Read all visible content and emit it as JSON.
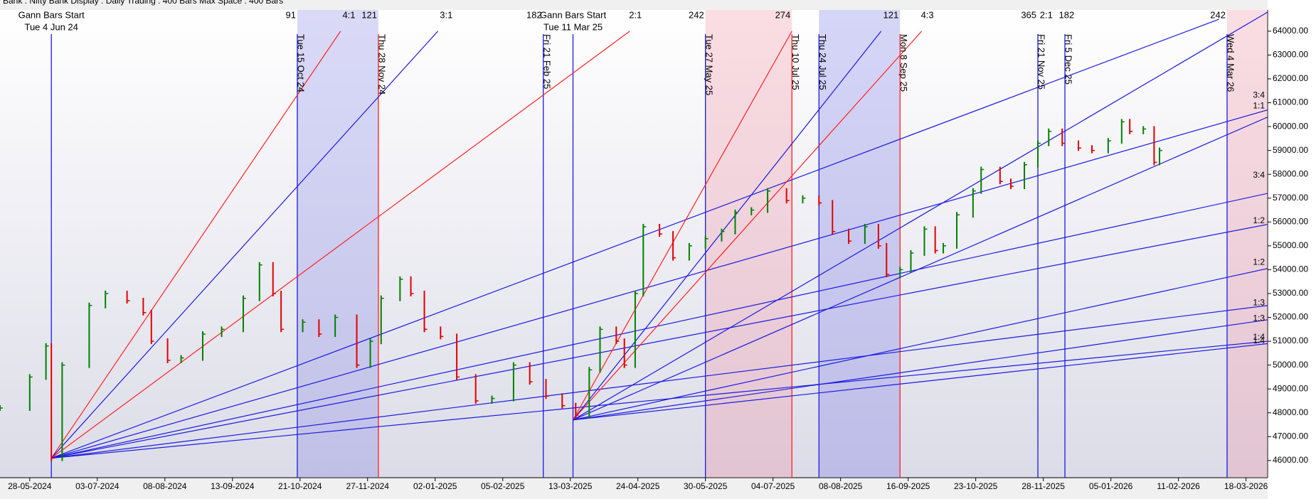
{
  "header_text": "Bank : Nifty Bank Display : Daily    Trading : 400 Bars    Max Space : 400 Bars",
  "chart_data": {
    "type": "gann",
    "xlim": [
      -11,
      458
    ],
    "ylim": [
      45280,
      64890
    ],
    "xticks": [
      {
        "value": 0,
        "label": "28-05-2024"
      },
      {
        "value": 25,
        "label": "03-07-2024"
      },
      {
        "value": 50,
        "label": "08-08-2024"
      },
      {
        "value": 75,
        "label": "13-09-2024"
      },
      {
        "value": 100,
        "label": "21-10-2024"
      },
      {
        "value": 125,
        "label": "27-11-2024"
      },
      {
        "value": 150,
        "label": "02-01-2025"
      },
      {
        "value": 175,
        "label": "05-02-2025"
      },
      {
        "value": 200,
        "label": "13-03-2025"
      },
      {
        "value": 225,
        "label": "24-04-2025"
      },
      {
        "value": 250,
        "label": "30-05-2025"
      },
      {
        "value": 275,
        "label": "04-07-2025"
      },
      {
        "value": 300,
        "label": "08-08-2025"
      },
      {
        "value": 325,
        "label": "16-09-2025"
      },
      {
        "value": 350,
        "label": "23-10-2025"
      },
      {
        "value": 375,
        "label": "28-11-2025"
      },
      {
        "value": 400,
        "label": "05-01-2026"
      },
      {
        "value": 425,
        "label": "11-02-2026"
      },
      {
        "value": 450,
        "label": "18-03-2026"
      }
    ],
    "yticks": [
      {
        "value": 46000,
        "label": "46000.00"
      },
      {
        "value": 47000,
        "label": "47000.00"
      },
      {
        "value": 48000,
        "label": "48000.00"
      },
      {
        "value": 49000,
        "label": "49000.00"
      },
      {
        "value": 50000,
        "label": "50000.00"
      },
      {
        "value": 51000,
        "label": "51000.00"
      },
      {
        "value": 52000,
        "label": "52000.00"
      },
      {
        "value": 53000,
        "label": "53000.00"
      },
      {
        "value": 54000,
        "label": "54000.00"
      },
      {
        "value": 55000,
        "label": "55000.00"
      },
      {
        "value": 56000,
        "label": "56000.00"
      },
      {
        "value": 57000,
        "label": "57000.00"
      },
      {
        "value": 58000,
        "label": "58000.00"
      },
      {
        "value": 59000,
        "label": "59000.00"
      },
      {
        "value": 60000,
        "label": "60000.00"
      },
      {
        "value": 61000,
        "label": "61000.00"
      },
      {
        "value": 62000,
        "label": "62000.00"
      },
      {
        "value": 63000,
        "label": "63000.00"
      },
      {
        "value": 64000,
        "label": "64000.00"
      }
    ],
    "price": {
      "up_color": "#008000",
      "down_color": "#e00000",
      "x": [
        -11,
        0,
        6,
        8,
        12,
        22,
        28,
        36,
        42,
        45,
        51,
        56,
        64,
        71,
        79,
        85,
        90,
        93,
        101,
        107,
        113,
        121,
        126,
        130,
        137,
        141,
        146,
        152,
        158,
        165,
        171,
        179,
        185,
        191,
        197,
        202,
        207,
        211,
        217,
        220,
        224,
        227,
        233,
        238,
        244,
        250,
        256,
        261,
        267,
        273,
        280,
        286,
        292,
        297,
        303,
        309,
        314,
        317,
        322,
        326,
        331,
        335,
        338,
        343,
        349,
        352,
        359,
        363,
        368,
        373,
        377,
        382,
        388,
        393,
        399,
        404,
        407,
        412,
        416,
        418
      ],
      "values": [
        48200,
        49500,
        50800,
        46100,
        50000,
        52500,
        53000,
        52700,
        52200,
        51000,
        50200,
        50300,
        51300,
        51500,
        52800,
        54200,
        53000,
        51500,
        51800,
        51300,
        52000,
        50000,
        51000,
        52800,
        53600,
        53000,
        51500,
        51200,
        49500,
        48500,
        48600,
        50000,
        49300,
        48700,
        48300,
        47900,
        49800,
        51500,
        51000,
        50000,
        53000,
        55800,
        55500,
        54500,
        55000,
        55300,
        55600,
        56400,
        56500,
        57300,
        56900,
        57000,
        56800,
        55600,
        55200,
        55800,
        55000,
        53800,
        54000,
        54700,
        55700,
        54800,
        55000,
        56300,
        57300,
        58200,
        57700,
        57500,
        58400,
        59300,
        59800,
        59300,
        59100,
        59000,
        59400,
        60200,
        59800,
        59900,
        58500,
        59000
      ]
    },
    "bands": [
      {
        "from": 99,
        "to": 129,
        "color": "#7a7ae6"
      },
      {
        "from": 250,
        "to": 282,
        "color": "#f08a9a"
      },
      {
        "from": 292,
        "to": 322,
        "color": "#6a6ae6"
      },
      {
        "from": 443,
        "to": 458,
        "color": "#f08a9a"
      }
    ],
    "vlines": [
      {
        "x": 8,
        "color": "#1a1ae0"
      },
      {
        "x": 99,
        "color": "#1a1ae0",
        "label": "Tue 15 Oct 24"
      },
      {
        "x": 129,
        "color": "#ff2020",
        "label": "Thu 28 Nov 24"
      },
      {
        "x": 190,
        "color": "#1a1ae0",
        "label": "Fri 21 Feb 25"
      },
      {
        "x": 201,
        "color": "#1a1ae0"
      },
      {
        "x": 250,
        "color": "#1a1ae0",
        "label": "Tue 27 May 25"
      },
      {
        "x": 282,
        "color": "#ff2020",
        "label": "Thu 10 Jul 25"
      },
      {
        "x": 292,
        "color": "#1a1ae0",
        "label": "Thu 24 Jul 25"
      },
      {
        "x": 322,
        "color": "#ff2020",
        "label": "Mon 8 Sep 25"
      },
      {
        "x": 373,
        "color": "#1a1ae0",
        "label": "Fri 21 Nov 25"
      },
      {
        "x": 383,
        "color": "#1a1ae0",
        "label": "Fri 5 Dec 25"
      },
      {
        "x": 443,
        "color": "#1a1ae0",
        "label": "Wed 4 Mar 26"
      }
    ],
    "starts": [
      {
        "x": 8,
        "title": "Gann Bars Start",
        "date": "Tue 4 Jun 24"
      },
      {
        "x": 201,
        "title": "Gann Bars Start",
        "date": "Tue 11 Mar 25"
      }
    ],
    "top_labels": [
      {
        "text": "91",
        "x": 99
      },
      {
        "text": "4:1",
        "x": 121
      },
      {
        "text": "121",
        "x": 129
      },
      {
        "text": "3:1",
        "x": 157
      },
      {
        "text": "182",
        "x": 190
      },
      {
        "text": "2:1",
        "x": 227
      },
      {
        "text": "242",
        "x": 250
      },
      {
        "text": "274",
        "x": 282
      },
      {
        "text": "121",
        "x": 322
      },
      {
        "text": "4:3",
        "x": 335
      },
      {
        "text": "365",
        "x": 373
      },
      {
        "text": "2:1",
        "x": 379
      },
      {
        "text": "182",
        "x": 387
      },
      {
        "text": "242",
        "x": 443
      }
    ],
    "fans": [
      {
        "color": "#ff2020",
        "from": [
          8,
          46100
        ],
        "to": [
          115,
          64000
        ]
      },
      {
        "color": "#1a1ae0",
        "from": [
          8,
          46100
        ],
        "to": [
          151,
          64000
        ]
      },
      {
        "color": "#ff2020",
        "from": [
          8,
          46100
        ],
        "to": [
          222,
          64000
        ]
      },
      {
        "color": "#1a1ae0",
        "from": [
          8,
          46100
        ],
        "to": [
          440,
          64500
        ]
      },
      {
        "color": "#1a1ae0",
        "from": [
          8,
          46100
        ],
        "to": [
          458,
          60700
        ]
      },
      {
        "color": "#1a1ae0",
        "from": [
          8,
          46100
        ],
        "to": [
          458,
          57200
        ]
      },
      {
        "color": "#1a1ae0",
        "from": [
          8,
          46100
        ],
        "to": [
          458,
          55900
        ]
      },
      {
        "color": "#1a1ae0",
        "from": [
          8,
          46100
        ],
        "to": [
          458,
          52500
        ]
      },
      {
        "color": "#1a1ae0",
        "from": [
          8,
          46100
        ],
        "to": [
          458,
          51000
        ]
      },
      {
        "color": "#ff2020",
        "from": [
          201,
          47700
        ],
        "to": [
          282,
          64000
        ]
      },
      {
        "color": "#1a1ae0",
        "from": [
          201,
          47700
        ],
        "to": [
          315,
          64000
        ]
      },
      {
        "color": "#ff2020",
        "from": [
          201,
          47700
        ],
        "to": [
          330,
          64000
        ]
      },
      {
        "color": "#1a1ae0",
        "from": [
          201,
          47700
        ],
        "to": [
          458,
          64800
        ]
      },
      {
        "color": "#1a1ae0",
        "from": [
          201,
          47700
        ],
        "to": [
          458,
          60400
        ]
      },
      {
        "color": "#1a1ae0",
        "from": [
          201,
          47700
        ],
        "to": [
          458,
          54050
        ]
      },
      {
        "color": "#1a1ae0",
        "from": [
          201,
          47700
        ],
        "to": [
          458,
          51900
        ]
      },
      {
        "color": "#1a1ae0",
        "from": [
          201,
          47700
        ],
        "to": [
          458,
          50900
        ]
      }
    ],
    "ratio_labels": [
      {
        "text": "3:4",
        "price": 61300
      },
      {
        "text": "1:1",
        "price": 60850
      },
      {
        "text": "3:4",
        "price": 57950
      },
      {
        "text": "1:2",
        "price": 56050
      },
      {
        "text": "1:2",
        "price": 54300
      },
      {
        "text": "1:3",
        "price": 52600
      },
      {
        "text": "1:3",
        "price": 51950
      },
      {
        "text": "1:4",
        "price": 51150
      },
      {
        "text": "1:4",
        "price": 51000
      }
    ]
  }
}
